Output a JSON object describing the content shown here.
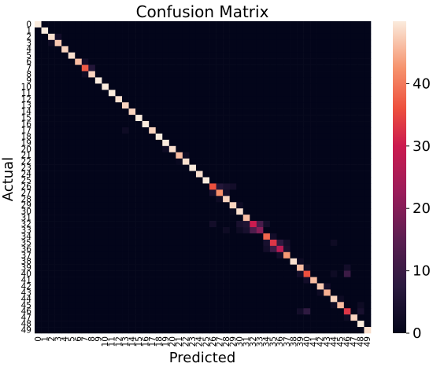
{
  "chart_data": {
    "type": "heatmap",
    "title": "Confusion Matrix",
    "xlabel": "Predicted",
    "ylabel": "Actual",
    "categories": [
      "0",
      "1",
      "2",
      "3",
      "4",
      "5",
      "6",
      "7",
      "8",
      "9",
      "10",
      "11",
      "12",
      "13",
      "14",
      "15",
      "16",
      "17",
      "18",
      "19",
      "20",
      "21",
      "22",
      "23",
      "24",
      "25",
      "26",
      "27",
      "28",
      "29",
      "30",
      "31",
      "32",
      "33",
      "34",
      "35",
      "36",
      "37",
      "38",
      "39",
      "40",
      "41",
      "42",
      "43",
      "44",
      "45",
      "46",
      "47",
      "48",
      "49"
    ],
    "n": 50,
    "diagonal": [
      50,
      50,
      49,
      47,
      48,
      49,
      46,
      37,
      48,
      50,
      50,
      50,
      49,
      48,
      48,
      50,
      50,
      48,
      50,
      50,
      49,
      46,
      49,
      50,
      49,
      50,
      36,
      42,
      48,
      48,
      49,
      46,
      30,
      20,
      38,
      33,
      27,
      43,
      49,
      46,
      36,
      46,
      47,
      45,
      48,
      46,
      33,
      48,
      50,
      49
    ],
    "off_diagonal": [
      [
        2,
        3,
        3
      ],
      [
        3,
        2,
        2
      ],
      [
        6,
        7,
        3
      ],
      [
        7,
        8,
        6
      ],
      [
        8,
        7,
        2
      ],
      [
        17,
        13,
        2
      ],
      [
        20,
        19,
        2
      ],
      [
        21,
        22,
        2
      ],
      [
        22,
        21,
        1
      ],
      [
        26,
        27,
        6
      ],
      [
        26,
        28,
        4
      ],
      [
        26,
        29,
        3
      ],
      [
        27,
        26,
        4
      ],
      [
        27,
        28,
        3
      ],
      [
        28,
        27,
        2
      ],
      [
        29,
        30,
        2
      ],
      [
        30,
        29,
        1
      ],
      [
        32,
        30,
        4
      ],
      [
        32,
        31,
        5
      ],
      [
        32,
        33,
        12
      ],
      [
        32,
        34,
        3
      ],
      [
        33,
        32,
        13
      ],
      [
        33,
        31,
        4
      ],
      [
        33,
        30,
        2
      ],
      [
        34,
        35,
        3
      ],
      [
        35,
        34,
        4
      ],
      [
        35,
        36,
        8
      ],
      [
        35,
        37,
        3
      ],
      [
        36,
        35,
        10
      ],
      [
        36,
        34,
        3
      ],
      [
        36,
        37,
        4
      ],
      [
        37,
        36,
        3
      ],
      [
        32,
        26,
        3
      ],
      [
        33,
        28,
        2
      ],
      [
        39,
        46,
        3
      ],
      [
        40,
        46,
        10
      ],
      [
        40,
        39,
        3
      ],
      [
        41,
        40,
        3
      ],
      [
        42,
        43,
        3
      ],
      [
        43,
        42,
        2
      ],
      [
        44,
        45,
        2
      ],
      [
        45,
        44,
        2
      ],
      [
        46,
        40,
        8
      ],
      [
        46,
        39,
        3
      ],
      [
        46,
        48,
        4
      ],
      [
        47,
        46,
        2
      ],
      [
        39,
        40,
        2
      ],
      [
        38,
        39,
        2
      ],
      [
        35,
        44,
        2
      ],
      [
        40,
        44,
        2
      ],
      [
        45,
        48,
        2
      ]
    ],
    "colorbar": {
      "min": 0,
      "max": 50,
      "ticks": [
        0,
        10,
        20,
        30,
        40
      ]
    }
  }
}
